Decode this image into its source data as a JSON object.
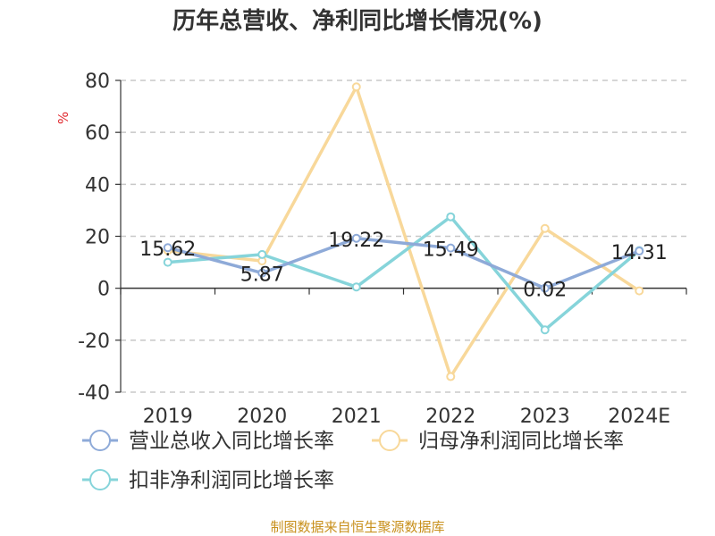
{
  "chart_data": {
    "type": "line",
    "title": "历年总营收、净利同比增长情况(%)",
    "unit_label": "%",
    "categories": [
      "2019",
      "2020",
      "2021",
      "2022",
      "2023",
      "2024E"
    ],
    "ylim": [
      -40,
      80
    ],
    "yticks": [
      "80",
      "60",
      "40",
      "20",
      "0",
      "-20",
      "-40"
    ],
    "ytick_values": [
      80,
      60,
      40,
      20,
      0,
      -20,
      -40
    ],
    "grid": "horizontal-dashed",
    "legend_position": "bottom",
    "series": [
      {
        "name": "营业总收入同比增长率",
        "color": "#8eaad8",
        "values": [
          15.62,
          5.87,
          19.22,
          15.49,
          0.02,
          14.31
        ],
        "labels": [
          "15.62",
          "5.87",
          "19.22",
          "15.49",
          "0.02",
          "14.31"
        ]
      },
      {
        "name": "归母净利润同比增长率",
        "color": "#f8d89a",
        "values": [
          14.5,
          10.5,
          77.5,
          -34.0,
          23.0,
          -1.0
        ],
        "labels": []
      },
      {
        "name": "扣非净利润同比增长率",
        "color": "#86d4da",
        "values": [
          10.0,
          13.0,
          0.5,
          27.5,
          -16.0,
          14.5
        ],
        "labels": []
      }
    ]
  },
  "source_note": "制图数据来自恒生聚源数据库"
}
